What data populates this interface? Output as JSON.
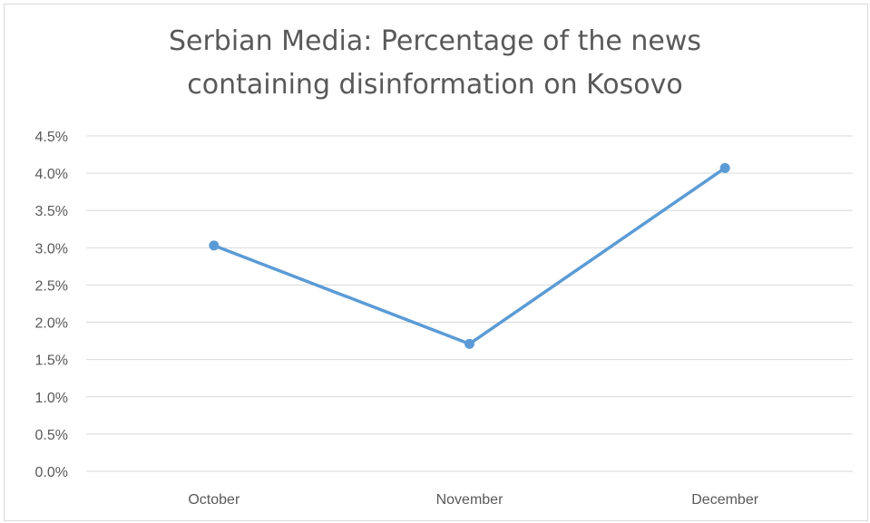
{
  "chart_data": {
    "type": "line",
    "title_lines": [
      "Serbian Media: Percentage of the news",
      "containing disinformation on Kosovo"
    ],
    "categories": [
      "October",
      "November",
      "December"
    ],
    "series": [
      {
        "values": [
          0.0303,
          0.0171,
          0.0407
        ]
      }
    ],
    "y_ticks": [
      "0.0%",
      "0.5%",
      "1.0%",
      "1.5%",
      "2.0%",
      "2.5%",
      "3.0%",
      "3.5%",
      "4.0%",
      "4.5%"
    ],
    "ylim": [
      0,
      0.045
    ],
    "grid": true,
    "legend": "none",
    "colors": {
      "series": "#5b9bd5",
      "grid": "#d9d9d9",
      "text": "#595959"
    }
  }
}
